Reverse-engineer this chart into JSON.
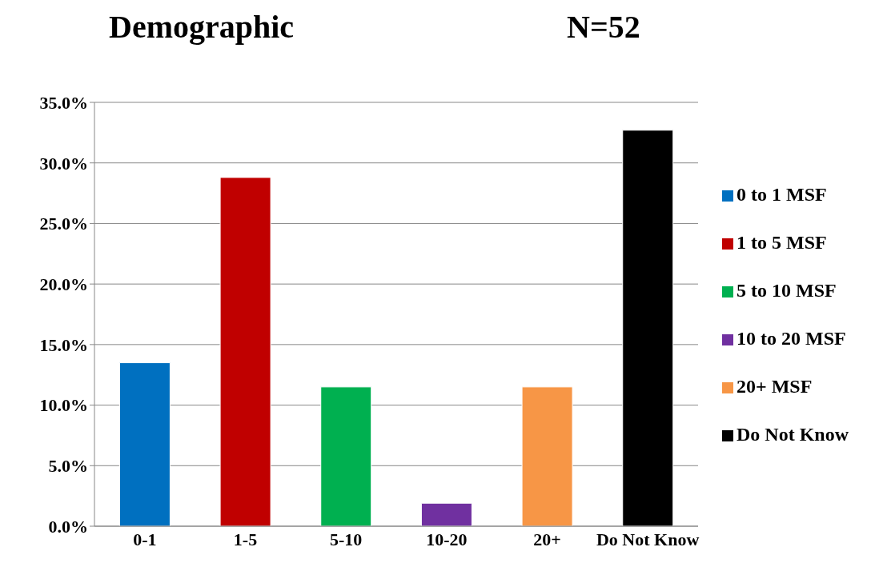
{
  "chart_data": {
    "type": "bar",
    "title": "Demographic",
    "annotations": [
      "N=52"
    ],
    "categories": [
      "0-1",
      "1-5",
      "5-10",
      "10-20",
      "20+",
      "Do Not Know"
    ],
    "stacked": true,
    "series": [
      {
        "name": "0 to 1 MSF",
        "color": "#0070c0",
        "values": [
          13.5,
          null,
          null,
          null,
          null,
          null
        ]
      },
      {
        "name": "1 to 5 MSF",
        "color": "#c00000",
        "values": [
          null,
          28.8,
          null,
          null,
          null,
          null
        ]
      },
      {
        "name": "5 to 10 MSF",
        "color": "#00b050",
        "values": [
          null,
          null,
          11.5,
          null,
          null,
          null
        ]
      },
      {
        "name": "10 to 20 MSF",
        "color": "#7030a0",
        "values": [
          null,
          null,
          null,
          1.9,
          null,
          null
        ]
      },
      {
        "name": "20+ MSF",
        "color": "#f79646",
        "values": [
          null,
          null,
          null,
          null,
          11.5,
          null
        ]
      },
      {
        "name": "Do Not Know",
        "color": "#000000",
        "values": [
          null,
          null,
          null,
          null,
          null,
          32.7
        ]
      }
    ],
    "ylim": [
      0,
      35
    ],
    "yticks": [
      {
        "value": 0,
        "label": "0.0%"
      },
      {
        "value": 5,
        "label": "5.0%"
      },
      {
        "value": 10,
        "label": "10.0%"
      },
      {
        "value": 15,
        "label": "15.0%"
      },
      {
        "value": 20,
        "label": "20.0%"
      },
      {
        "value": 25,
        "label": "25.0%"
      },
      {
        "value": 30,
        "label": "30.0%"
      },
      {
        "value": 35,
        "label": "35.0%"
      }
    ],
    "grid": "y",
    "legend": "right"
  }
}
